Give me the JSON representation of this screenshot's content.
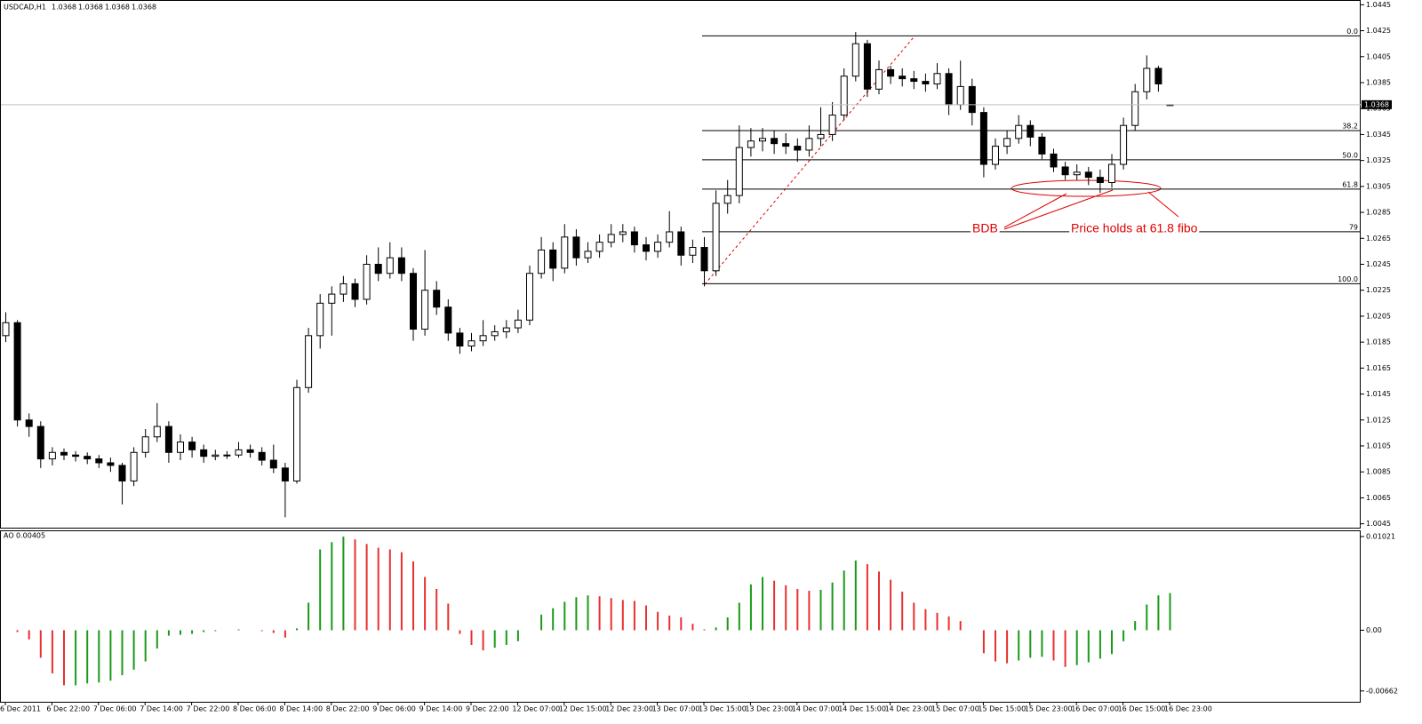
{
  "chart_data": [
    {
      "type": "candlestick",
      "title": "USDCAD,H1",
      "categories": [
        "6 Dec 2011",
        null,
        null,
        null,
        "6 Dec 22:00",
        null,
        null,
        null,
        "7 Dec 06:00",
        null,
        null,
        null,
        "7 Dec 14:00",
        null,
        null,
        null,
        "7 Dec 22:00",
        null,
        null,
        null,
        "8 Dec 06:00",
        null,
        null,
        null,
        "8 Dec 14:00",
        null,
        null,
        null,
        "8 Dec 22:00",
        null,
        null,
        null,
        "9 Dec 06:00",
        null,
        null,
        null,
        "9 Dec 14:00",
        null,
        null,
        null,
        "9 Dec 22:00",
        null,
        null,
        null,
        "12 Dec 07:00",
        null,
        null,
        null,
        "12 Dec 15:00",
        null,
        null,
        null,
        "12 Dec 23:00",
        null,
        null,
        null,
        "13 Dec 07:00",
        null,
        null,
        null,
        "13 Dec 15:00",
        null,
        null,
        null,
        "13 Dec 23:00",
        null,
        null,
        null,
        "14 Dec 07:00",
        null,
        null,
        null,
        "14 Dec 15:00",
        null,
        null,
        null,
        "14 Dec 23:00",
        null,
        null,
        null,
        "15 Dec 07:00",
        null,
        null,
        null,
        "15 Dec 15:00",
        null,
        null,
        null,
        "15 Dec 23:00",
        null,
        null,
        null,
        "16 Dec 07:00",
        null,
        null,
        null,
        "16 Dec 15:00",
        null,
        null,
        null,
        "16 Dec 23:00"
      ],
      "candles": [
        [
          1.019,
          1.0208,
          1.0185,
          1.02
        ],
        [
          1.02,
          1.0202,
          1.012,
          1.0125
        ],
        [
          1.0125,
          1.013,
          1.0112,
          1.012
        ],
        [
          1.012,
          1.0124,
          1.0088,
          1.0095
        ],
        [
          1.0095,
          1.0104,
          1.009,
          1.01
        ],
        [
          1.01,
          1.0103,
          1.0094,
          1.0098
        ],
        [
          1.0098,
          1.0101,
          1.0093,
          1.0097
        ],
        [
          1.0097,
          1.01,
          1.0091,
          1.0095
        ],
        [
          1.0095,
          1.0098,
          1.0088,
          1.0092
        ],
        [
          1.0092,
          1.0096,
          1.0085,
          1.009
        ],
        [
          1.009,
          1.0092,
          1.006,
          1.0078
        ],
        [
          1.0078,
          1.0104,
          1.0074,
          1.01
        ],
        [
          1.01,
          1.0118,
          1.0096,
          1.0112
        ],
        [
          1.0112,
          1.0138,
          1.0108,
          1.012
        ],
        [
          1.012,
          1.0124,
          1.0092,
          1.01
        ],
        [
          1.01,
          1.0114,
          1.0094,
          1.0108
        ],
        [
          1.0108,
          1.0112,
          1.0096,
          1.0102
        ],
        [
          1.0102,
          1.0106,
          1.0092,
          1.0097
        ],
        [
          1.0097,
          1.0102,
          1.0094,
          1.0098
        ],
        [
          1.0098,
          1.0101,
          1.0095,
          1.0098
        ],
        [
          1.0098,
          1.0108,
          1.0096,
          1.0102
        ],
        [
          1.0102,
          1.0106,
          1.0096,
          1.01
        ],
        [
          1.01,
          1.0104,
          1.009,
          1.0094
        ],
        [
          1.0094,
          1.0106,
          1.0084,
          1.0088
        ],
        [
          1.0088,
          1.0092,
          1.005,
          1.0078
        ],
        [
          1.0078,
          1.0156,
          1.0076,
          1.015
        ],
        [
          1.015,
          1.0196,
          1.0146,
          1.019
        ],
        [
          1.019,
          1.0222,
          1.018,
          1.0215
        ],
        [
          1.0215,
          1.0228,
          1.019,
          1.0222
        ],
        [
          1.0222,
          1.0236,
          1.0216,
          1.023
        ],
        [
          1.023,
          1.0234,
          1.0212,
          1.0218
        ],
        [
          1.0218,
          1.0252,
          1.0214,
          1.0245
        ],
        [
          1.0245,
          1.0258,
          1.0232,
          1.0238
        ],
        [
          1.0238,
          1.0262,
          1.0234,
          1.025
        ],
        [
          1.025,
          1.0258,
          1.0232,
          1.0238
        ],
        [
          1.0238,
          1.0242,
          1.0186,
          1.0195
        ],
        [
          1.0195,
          1.0256,
          1.019,
          1.0225
        ],
        [
          1.0225,
          1.0232,
          1.0206,
          1.0212
        ],
        [
          1.0212,
          1.0218,
          1.0186,
          1.0192
        ],
        [
          1.0192,
          1.0196,
          1.0176,
          1.0182
        ],
        [
          1.0182,
          1.0192,
          1.0178,
          1.0186
        ],
        [
          1.0186,
          1.0202,
          1.0182,
          1.019
        ],
        [
          1.019,
          1.0198,
          1.0186,
          1.0193
        ],
        [
          1.0193,
          1.0202,
          1.0188,
          1.0196
        ],
        [
          1.0196,
          1.021,
          1.0192,
          1.0202
        ],
        [
          1.0202,
          1.0244,
          1.0198,
          1.0238
        ],
        [
          1.0238,
          1.0266,
          1.0234,
          1.0256
        ],
        [
          1.0256,
          1.0262,
          1.0232,
          1.0242
        ],
        [
          1.0242,
          1.0276,
          1.0238,
          1.0266
        ],
        [
          1.0266,
          1.0272,
          1.0244,
          1.025
        ],
        [
          1.025,
          1.0262,
          1.0246,
          1.0255
        ],
        [
          1.0255,
          1.0268,
          1.025,
          1.0262
        ],
        [
          1.0262,
          1.0276,
          1.0258,
          1.0268
        ],
        [
          1.0268,
          1.0276,
          1.0262,
          1.027
        ],
        [
          1.027,
          1.0274,
          1.0254,
          1.026
        ],
        [
          1.026,
          1.0266,
          1.0248,
          1.0255
        ],
        [
          1.0255,
          1.0268,
          1.025,
          1.0262
        ],
        [
          1.0262,
          1.0286,
          1.0258,
          1.027
        ],
        [
          1.027,
          1.0274,
          1.0244,
          1.0252
        ],
        [
          1.0252,
          1.0264,
          1.0246,
          1.0258
        ],
        [
          1.0258,
          1.0266,
          1.0228,
          1.024
        ],
        [
          1.024,
          1.0302,
          1.0236,
          1.0292
        ],
        [
          1.0292,
          1.031,
          1.0284,
          1.0298
        ],
        [
          1.0298,
          1.0352,
          1.0292,
          1.0335
        ],
        [
          1.0335,
          1.035,
          1.0328,
          1.034
        ],
        [
          1.034,
          1.035,
          1.0332,
          1.0342
        ],
        [
          1.0342,
          1.0348,
          1.033,
          1.0338
        ],
        [
          1.0338,
          1.0346,
          1.033,
          1.0336
        ],
        [
          1.0336,
          1.0342,
          1.0324,
          1.0333
        ],
        [
          1.0333,
          1.0352,
          1.0328,
          1.0342
        ],
        [
          1.0342,
          1.0366,
          1.0336,
          1.0345
        ],
        [
          1.0345,
          1.037,
          1.034,
          1.036
        ],
        [
          1.036,
          1.0396,
          1.0356,
          1.039
        ],
        [
          1.039,
          1.0424,
          1.0386,
          1.0415
        ],
        [
          1.0415,
          1.0418,
          1.0374,
          1.038
        ],
        [
          1.038,
          1.0402,
          1.0376,
          1.0395
        ],
        [
          1.0395,
          1.0398,
          1.0384,
          1.039
        ],
        [
          1.039,
          1.0396,
          1.0382,
          1.0388
        ],
        [
          1.0388,
          1.0394,
          1.038,
          1.0386
        ],
        [
          1.0386,
          1.0392,
          1.0378,
          1.0384
        ],
        [
          1.0384,
          1.04,
          1.038,
          1.0392
        ],
        [
          1.0392,
          1.0396,
          1.036,
          1.0368
        ],
        [
          1.0368,
          1.0402,
          1.0364,
          1.0382
        ],
        [
          1.0382,
          1.0388,
          1.0352,
          1.0362
        ],
        [
          1.0362,
          1.0366,
          1.0312,
          1.0322
        ],
        [
          1.0322,
          1.0342,
          1.0318,
          1.0336
        ],
        [
          1.0336,
          1.0348,
          1.033,
          1.0342
        ],
        [
          1.0342,
          1.036,
          1.0338,
          1.0352
        ],
        [
          1.0352,
          1.0356,
          1.0336,
          1.0343
        ],
        [
          1.0343,
          1.0346,
          1.0326,
          1.033
        ],
        [
          1.033,
          1.0334,
          1.0316,
          1.032
        ],
        [
          1.032,
          1.0324,
          1.031,
          1.0314
        ],
        [
          1.0314,
          1.0322,
          1.031,
          1.0316
        ],
        [
          1.0316,
          1.032,
          1.0306,
          1.0312
        ],
        [
          1.0312,
          1.0318,
          1.03,
          1.0308
        ],
        [
          1.0308,
          1.033,
          1.0304,
          1.0322
        ],
        [
          1.0322,
          1.0358,
          1.0318,
          1.0352
        ],
        [
          1.0352,
          1.0384,
          1.0348,
          1.0378
        ],
        [
          1.0378,
          1.0406,
          1.0372,
          1.0396
        ],
        [
          1.0396,
          1.0398,
          1.0378,
          1.0384
        ],
        [
          1.0368,
          1.0368,
          1.0368,
          1.0368
        ]
      ],
      "ylim": [
        1.0042,
        1.0448
      ],
      "yticks": [
        1.0045,
        1.0065,
        1.0085,
        1.0105,
        1.0125,
        1.0145,
        1.0165,
        1.0185,
        1.0205,
        1.0225,
        1.0245,
        1.0265,
        1.0285,
        1.0305,
        1.0325,
        1.0345,
        1.0365,
        1.0385,
        1.0405,
        1.0425,
        1.0445
      ],
      "up_color": "#ffffff",
      "down_color": "#000000",
      "fibonacci": {
        "high": 1.0421,
        "low": 1.023,
        "color": "#000000",
        "levels": [
          {
            "value": 0,
            "label": "0.0"
          },
          38.2,
          {
            "value": 50,
            "label": "50.0"
          },
          61.8,
          79,
          {
            "value": 100,
            "label": "100.0"
          }
        ]
      },
      "annotations": [
        "BDB",
        "Price holds at 61.8 fibo"
      ]
    },
    {
      "type": "bar",
      "title": "AO",
      "values": [
        0.0,
        -0.0002,
        -0.001,
        -0.003,
        -0.0047,
        -0.006,
        -0.006,
        -0.0058,
        -0.0057,
        -0.0055,
        -0.0049,
        -0.0043,
        -0.0034,
        -0.002,
        -0.0006,
        -0.0005,
        -0.0004,
        -0.0002,
        -0.0001,
        0.0,
        0.0001,
        0.0,
        -0.0001,
        -0.0003,
        -0.0008,
        0.0002,
        0.003,
        0.0088,
        0.0096,
        0.0102,
        0.0099,
        0.0094,
        0.009,
        0.0088,
        0.0085,
        0.0075,
        0.0058,
        0.0045,
        0.0029,
        -0.0004,
        -0.0016,
        -0.0022,
        -0.0019,
        -0.0016,
        -0.0012,
        0.0,
        0.0017,
        0.0024,
        0.0031,
        0.0036,
        0.0038,
        0.0037,
        0.0035,
        0.0033,
        0.0032,
        0.0027,
        0.002,
        0.0016,
        0.0014,
        0.0007,
        0.0001,
        0.0003,
        0.0014,
        0.003,
        0.005,
        0.0058,
        0.0054,
        0.0049,
        0.0045,
        0.0043,
        0.0044,
        0.0052,
        0.0065,
        0.0076,
        0.0072,
        0.0064,
        0.0055,
        0.0042,
        0.003,
        0.0023,
        0.0019,
        0.0015,
        0.001,
        0.0,
        -0.0025,
        -0.0034,
        -0.0036,
        -0.0033,
        -0.003,
        -0.0029,
        -0.0033,
        -0.004,
        -0.0038,
        -0.0035,
        -0.0031,
        -0.0026,
        -0.0012,
        0.001,
        0.0028,
        0.0038,
        0.00405
      ],
      "ylim": [
        -0.0078,
        0.01079
      ],
      "yticks": [
        0.01021,
        {
          "value": 0,
          "label": "0.00"
        },
        -0.00662
      ],
      "up_color": "#1a9a1a",
      "down_color": "#e83030"
    }
  ]
}
